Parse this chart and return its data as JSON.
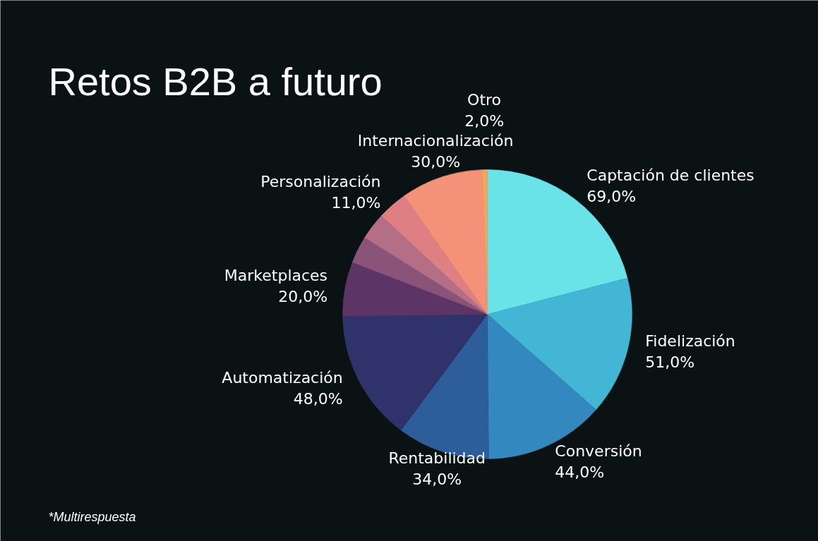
{
  "chart_data": {
    "type": "pie",
    "title": "Retos B2B a futuro",
    "categories": [
      "Captación de clientes",
      "Fidelización",
      "Conversión",
      "Rentabilidad",
      "Automatización",
      "Marketplaces",
      null,
      null,
      "Personalización",
      "Internacionalización",
      "Otro"
    ],
    "values": [
      69,
      51,
      44,
      34,
      48,
      20,
      10,
      10,
      11,
      30,
      2
    ],
    "value_labels": [
      "69,0%",
      "51,0%",
      "44,0%",
      "34,0%",
      "48,0%",
      "20,0%",
      null,
      null,
      "11,0%",
      "30,0%",
      "2,0%"
    ],
    "colors": [
      "#6ae3e8",
      "#42b6d4",
      "#3389bf",
      "#2e5e9a",
      "#30336b",
      "#5c3566",
      "#8a5478",
      "#b46f87",
      "#de7f84",
      "#f39179",
      "#f4a55a"
    ],
    "annotations": [
      "*Multirespuesta"
    ]
  }
}
